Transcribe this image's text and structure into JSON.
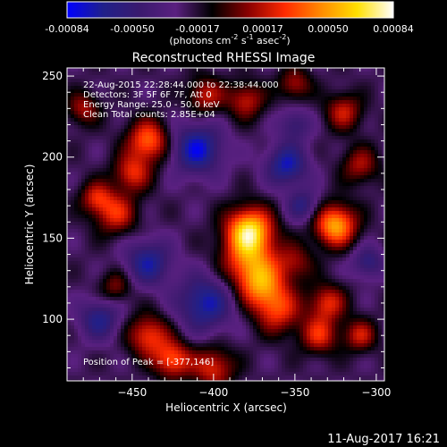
{
  "chart_data": {
    "type": "heatmap",
    "title": "Reconstructed RHESSI Image",
    "xlabel": "Heliocentric X (arcsec)",
    "ylabel": "Heliocentric Y (arcsec)",
    "xlim": [
      -490,
      -295
    ],
    "ylim": [
      62,
      255
    ],
    "xticks": [
      -450,
      -400,
      -350,
      -300
    ],
    "yticks": [
      100,
      150,
      200,
      250
    ],
    "grid": false,
    "colorbar": {
      "position": "top",
      "unit_prefix": "(photons cm",
      "unit_exp1": "-2",
      "unit_mid": " s",
      "unit_exp2": "-1",
      "unit_mid2": " asec",
      "unit_exp3": "-2",
      "unit_suffix": ")",
      "ticks": [
        "-0.00084",
        "-0.00050",
        "-0.00017",
        "0.00017",
        "0.00050",
        "0.00084"
      ],
      "range": [
        -0.00084,
        0.00084
      ],
      "colors": [
        "#0000ff",
        "#20208a",
        "#3a1a6e",
        "#5a2080",
        "#000000",
        "#8a0000",
        "#ff2a00",
        "#ff8a00",
        "#ffe000",
        "#ffffff"
      ]
    },
    "annotations": [
      "22-Aug-2015 22:28:44.000 to 22:38:44.000",
      "Detectors: 3F 5F 6F 7F, Att 0",
      "Energy Range: 25.0 - 50.0 keV",
      "Clean    Total counts: 2.85E+04"
    ],
    "peak_label": "Position of Peak = [-377,146]",
    "peak": [
      -377,
      146
    ],
    "sources": [
      {
        "x": -378,
        "y": 155,
        "amplitude": 0.00084,
        "sigma": 10
      },
      {
        "x": -378,
        "y": 135,
        "amplitude": 0.00055,
        "sigma": 12
      },
      {
        "x": -370,
        "y": 120,
        "amplitude": 0.0005,
        "sigma": 10
      },
      {
        "x": -360,
        "y": 105,
        "amplitude": 0.00045,
        "sigma": 10
      },
      {
        "x": -440,
        "y": 210,
        "amplitude": 0.0006,
        "sigma": 9
      },
      {
        "x": -450,
        "y": 190,
        "amplitude": 0.00045,
        "sigma": 8
      },
      {
        "x": -460,
        "y": 165,
        "amplitude": 0.00045,
        "sigma": 9
      },
      {
        "x": -472,
        "y": 175,
        "amplitude": 0.0004,
        "sigma": 7
      },
      {
        "x": -325,
        "y": 158,
        "amplitude": 0.00075,
        "sigma": 9
      },
      {
        "x": -320,
        "y": 228,
        "amplitude": 0.0004,
        "sigma": 8
      },
      {
        "x": -310,
        "y": 195,
        "amplitude": 0.00035,
        "sigma": 8
      },
      {
        "x": -330,
        "y": 110,
        "amplitude": 0.00045,
        "sigma": 8
      },
      {
        "x": -335,
        "y": 90,
        "amplitude": 0.00045,
        "sigma": 8
      },
      {
        "x": -310,
        "y": 90,
        "amplitude": 0.0004,
        "sigma": 7
      },
      {
        "x": -440,
        "y": 90,
        "amplitude": 0.0005,
        "sigma": 9
      },
      {
        "x": -425,
        "y": 75,
        "amplitude": 0.00055,
        "sigma": 8
      },
      {
        "x": -400,
        "y": 70,
        "amplitude": 0.00045,
        "sigma": 9
      },
      {
        "x": -405,
        "y": 238,
        "amplitude": 0.0004,
        "sigma": 8
      },
      {
        "x": -380,
        "y": 235,
        "amplitude": 0.0004,
        "sigma": 8
      },
      {
        "x": -350,
        "y": 245,
        "amplitude": 0.00035,
        "sigma": 7
      },
      {
        "x": -460,
        "y": 120,
        "amplitude": 0.0003,
        "sigma": 7
      },
      {
        "x": -480,
        "y": 230,
        "amplitude": 0.00035,
        "sigma": 7
      },
      {
        "x": -350,
        "y": 135,
        "amplitude": 0.0003,
        "sigma": 8
      },
      {
        "x": -410,
        "y": 205,
        "amplitude": -0.00055,
        "sigma": 11
      },
      {
        "x": -405,
        "y": 110,
        "amplitude": -0.0005,
        "sigma": 12
      },
      {
        "x": -355,
        "y": 195,
        "amplitude": -0.0005,
        "sigma": 9
      },
      {
        "x": -440,
        "y": 135,
        "amplitude": -0.00045,
        "sigma": 10
      },
      {
        "x": -470,
        "y": 100,
        "amplitude": -0.0004,
        "sigma": 9
      },
      {
        "x": -345,
        "y": 170,
        "amplitude": -0.00035,
        "sigma": 7
      },
      {
        "x": -305,
        "y": 135,
        "amplitude": -0.00035,
        "sigma": 7
      },
      {
        "x": -350,
        "y": 220,
        "amplitude": -0.0003,
        "sigma": 7
      }
    ]
  },
  "footer": {
    "timestamp": "11-Aug-2017 16:21"
  }
}
